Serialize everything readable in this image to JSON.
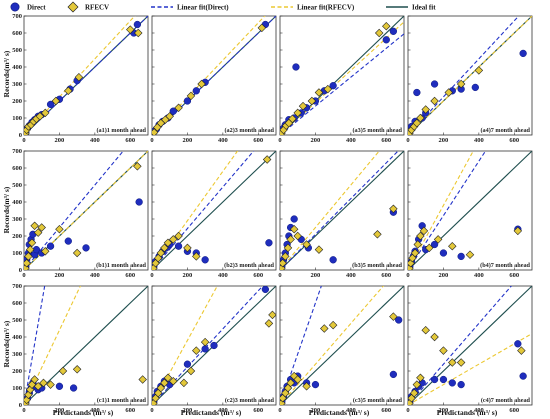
{
  "chart_data": {
    "type": "scatter",
    "grid": false,
    "xlabel": "Predictands (m³/ s)",
    "ylabel": "Records(m³/ s)",
    "xlim": [
      0,
      700
    ],
    "ylim": [
      0,
      700
    ],
    "xticks": [
      0,
      200,
      400,
      600
    ],
    "yticks": [
      0,
      100,
      200,
      300,
      400,
      500,
      600,
      700
    ],
    "colors": {
      "direct": "#1f2dbd",
      "rfecv": "#e3c83a",
      "linear_direct": "#2233c8",
      "linear_rfecv": "#ecc832",
      "ideal": "#1f4f4f"
    },
    "legend": {
      "position": "top",
      "entries": [
        {
          "key": "direct",
          "label": "Direct",
          "marker": "circle"
        },
        {
          "key": "rfecv",
          "label": "RFECV",
          "marker": "diamond"
        },
        {
          "key": "linear_direct",
          "label": "Linear fit(Direct)",
          "marker": "dashed-line"
        },
        {
          "key": "linear_rfecv",
          "label": "Linear fit(RFECV)",
          "marker": "dashed-line"
        },
        {
          "key": "ideal",
          "label": "Ideal fit",
          "marker": "solid-line"
        }
      ]
    },
    "panels": [
      {
        "label": "(a1)1 month ahead",
        "fit_direct": [
          0,
          1.0
        ],
        "fit_rfecv": [
          0,
          1.12
        ],
        "direct": [
          [
            10,
            15
          ],
          [
            20,
            40
          ],
          [
            30,
            55
          ],
          [
            45,
            75
          ],
          [
            60,
            90
          ],
          [
            80,
            110
          ],
          [
            100,
            120
          ],
          [
            150,
            180
          ],
          [
            200,
            210
          ],
          [
            260,
            270
          ],
          [
            300,
            320
          ],
          [
            620,
            600
          ],
          [
            640,
            650
          ]
        ],
        "rfecv": [
          [
            8,
            10
          ],
          [
            15,
            30
          ],
          [
            25,
            50
          ],
          [
            40,
            60
          ],
          [
            55,
            80
          ],
          [
            70,
            95
          ],
          [
            90,
            110
          ],
          [
            120,
            130
          ],
          [
            180,
            200
          ],
          [
            250,
            260
          ],
          [
            310,
            340
          ],
          [
            600,
            620
          ],
          [
            645,
            600
          ]
        ]
      },
      {
        "label": "(a2)3 month ahead",
        "fit_direct": [
          0,
          1.0
        ],
        "fit_rfecv": [
          0,
          1.1
        ],
        "direct": [
          [
            10,
            20
          ],
          [
            25,
            35
          ],
          [
            40,
            60
          ],
          [
            60,
            80
          ],
          [
            90,
            100
          ],
          [
            120,
            140
          ],
          [
            200,
            200
          ],
          [
            250,
            260
          ],
          [
            300,
            310
          ],
          [
            640,
            650
          ]
        ],
        "rfecv": [
          [
            12,
            15
          ],
          [
            30,
            45
          ],
          [
            50,
            70
          ],
          [
            75,
            90
          ],
          [
            100,
            110
          ],
          [
            150,
            160
          ],
          [
            220,
            230
          ],
          [
            280,
            300
          ],
          [
            620,
            630
          ]
        ]
      },
      {
        "label": "(a3)5 month ahead",
        "fit_direct": [
          0,
          0.85
        ],
        "fit_rfecv": [
          0,
          0.95
        ],
        "direct": [
          [
            10,
            20
          ],
          [
            20,
            40
          ],
          [
            30,
            60
          ],
          [
            50,
            90
          ],
          [
            80,
            100
          ],
          [
            90,
            400
          ],
          [
            120,
            130
          ],
          [
            150,
            160
          ],
          [
            200,
            200
          ],
          [
            250,
            260
          ],
          [
            300,
            290
          ],
          [
            600,
            560
          ],
          [
            640,
            610
          ]
        ],
        "rfecv": [
          [
            8,
            10
          ],
          [
            20,
            30
          ],
          [
            35,
            55
          ],
          [
            50,
            70
          ],
          [
            70,
            95
          ],
          [
            100,
            130
          ],
          [
            130,
            170
          ],
          [
            180,
            200
          ],
          [
            220,
            250
          ],
          [
            270,
            270
          ],
          [
            560,
            600
          ],
          [
            600,
            640
          ]
        ]
      },
      {
        "label": "(a4)7 month ahead",
        "fit_direct": [
          0,
          1.12
        ],
        "fit_rfecv": [
          0,
          1.0
        ],
        "direct": [
          [
            10,
            20
          ],
          [
            20,
            50
          ],
          [
            40,
            80
          ],
          [
            50,
            250
          ],
          [
            80,
            100
          ],
          [
            100,
            130
          ],
          [
            150,
            300
          ],
          [
            250,
            260
          ],
          [
            300,
            270
          ],
          [
            380,
            280
          ],
          [
            650,
            480
          ]
        ],
        "rfecv": [
          [
            8,
            10
          ],
          [
            20,
            30
          ],
          [
            35,
            50
          ],
          [
            50,
            70
          ],
          [
            70,
            100
          ],
          [
            100,
            150
          ],
          [
            150,
            200
          ],
          [
            230,
            250
          ],
          [
            300,
            300
          ],
          [
            400,
            380
          ]
        ]
      },
      {
        "label": "(b1)1 month ahead",
        "fit_direct": [
          0,
          1.25
        ],
        "fit_rfecv": [
          0,
          1.0
        ],
        "direct": [
          [
            10,
            20
          ],
          [
            15,
            60
          ],
          [
            25,
            100
          ],
          [
            30,
            150
          ],
          [
            40,
            180
          ],
          [
            50,
            210
          ],
          [
            60,
            90
          ],
          [
            70,
            120
          ],
          [
            100,
            100
          ],
          [
            150,
            140
          ],
          [
            250,
            170
          ],
          [
            350,
            130
          ],
          [
            650,
            400
          ]
        ],
        "rfecv": [
          [
            8,
            10
          ],
          [
            15,
            40
          ],
          [
            25,
            80
          ],
          [
            35,
            120
          ],
          [
            45,
            160
          ],
          [
            60,
            260
          ],
          [
            80,
            220
          ],
          [
            100,
            250
          ],
          [
            120,
            110
          ],
          [
            200,
            240
          ],
          [
            300,
            100
          ],
          [
            640,
            610
          ]
        ]
      },
      {
        "label": "(b2)3 month ahead",
        "fit_direct": [
          0,
          1.22
        ],
        "fit_rfecv": [
          0,
          1.45
        ],
        "direct": [
          [
            10,
            20
          ],
          [
            20,
            50
          ],
          [
            40,
            80
          ],
          [
            60,
            110
          ],
          [
            80,
            130
          ],
          [
            100,
            150
          ],
          [
            150,
            140
          ],
          [
            200,
            110
          ],
          [
            250,
            100
          ],
          [
            300,
            60
          ],
          [
            660,
            160
          ]
        ],
        "rfecv": [
          [
            8,
            10
          ],
          [
            20,
            40
          ],
          [
            35,
            70
          ],
          [
            50,
            100
          ],
          [
            70,
            130
          ],
          [
            90,
            160
          ],
          [
            120,
            180
          ],
          [
            150,
            200
          ],
          [
            200,
            130
          ],
          [
            250,
            80
          ],
          [
            650,
            650
          ]
        ]
      },
      {
        "label": "(b3)5 month ahead",
        "fit_direct": [
          0,
          1.05
        ],
        "fit_rfecv": [
          0,
          1.25
        ],
        "direct": [
          [
            10,
            20
          ],
          [
            20,
            60
          ],
          [
            30,
            100
          ],
          [
            40,
            150
          ],
          [
            50,
            200
          ],
          [
            60,
            250
          ],
          [
            80,
            300
          ],
          [
            120,
            180
          ],
          [
            160,
            130
          ],
          [
            300,
            60
          ],
          [
            640,
            340
          ]
        ],
        "rfecv": [
          [
            8,
            10
          ],
          [
            15,
            40
          ],
          [
            30,
            80
          ],
          [
            45,
            130
          ],
          [
            60,
            180
          ],
          [
            80,
            240
          ],
          [
            100,
            200
          ],
          [
            150,
            150
          ],
          [
            220,
            120
          ],
          [
            550,
            210
          ],
          [
            640,
            360
          ]
        ]
      },
      {
        "label": "(b4)7 month ahead",
        "fit_direct": [
          0,
          1.6
        ],
        "fit_rfecv": [
          0,
          1.9
        ],
        "direct": [
          [
            10,
            20
          ],
          [
            20,
            50
          ],
          [
            30,
            80
          ],
          [
            40,
            110
          ],
          [
            60,
            180
          ],
          [
            80,
            260
          ],
          [
            100,
            120
          ],
          [
            150,
            150
          ],
          [
            200,
            100
          ],
          [
            300,
            80
          ],
          [
            620,
            240
          ]
        ],
        "rfecv": [
          [
            8,
            10
          ],
          [
            15,
            40
          ],
          [
            25,
            70
          ],
          [
            40,
            100
          ],
          [
            55,
            150
          ],
          [
            70,
            200
          ],
          [
            90,
            230
          ],
          [
            120,
            130
          ],
          [
            170,
            180
          ],
          [
            250,
            140
          ],
          [
            350,
            90
          ],
          [
            620,
            230
          ]
        ]
      },
      {
        "label": "(c1)1 month ahead",
        "fit_direct": [
          0,
          6.0
        ],
        "fit_rfecv": [
          0,
          2.2
        ],
        "direct": [
          [
            10,
            20
          ],
          [
            20,
            40
          ],
          [
            30,
            70
          ],
          [
            40,
            100
          ],
          [
            50,
            130
          ],
          [
            60,
            110
          ],
          [
            80,
            90
          ],
          [
            100,
            100
          ],
          [
            200,
            110
          ],
          [
            280,
            100
          ]
        ],
        "rfecv": [
          [
            8,
            10
          ],
          [
            15,
            30
          ],
          [
            25,
            60
          ],
          [
            35,
            90
          ],
          [
            45,
            120
          ],
          [
            60,
            150
          ],
          [
            80,
            110
          ],
          [
            110,
            130
          ],
          [
            150,
            120
          ],
          [
            220,
            200
          ],
          [
            300,
            210
          ],
          [
            670,
            150
          ]
        ]
      },
      {
        "label": "(c2)3 month ahead",
        "fit_direct": [
          0,
          1.12
        ],
        "fit_rfecv": [
          0,
          1.9
        ],
        "direct": [
          [
            10,
            20
          ],
          [
            20,
            50
          ],
          [
            30,
            80
          ],
          [
            50,
            110
          ],
          [
            70,
            140
          ],
          [
            100,
            120
          ],
          [
            200,
            240
          ],
          [
            300,
            330
          ],
          [
            350,
            350
          ],
          [
            640,
            680
          ]
        ],
        "rfecv": [
          [
            8,
            10
          ],
          [
            20,
            40
          ],
          [
            35,
            70
          ],
          [
            50,
            100
          ],
          [
            70,
            130
          ],
          [
            90,
            160
          ],
          [
            120,
            140
          ],
          [
            180,
            130
          ],
          [
            220,
            200
          ],
          [
            250,
            320
          ],
          [
            300,
            370
          ],
          [
            660,
            480
          ],
          [
            680,
            530
          ]
        ]
      },
      {
        "label": "(c3)5 month ahead",
        "fit_direct": [
          0,
          3.0
        ],
        "fit_rfecv": [
          0,
          1.2
        ],
        "direct": [
          [
            10,
            20
          ],
          [
            20,
            50
          ],
          [
            30,
            80
          ],
          [
            40,
            110
          ],
          [
            60,
            150
          ],
          [
            80,
            130
          ],
          [
            100,
            170
          ],
          [
            150,
            130
          ],
          [
            200,
            120
          ],
          [
            640,
            180
          ],
          [
            670,
            500
          ]
        ],
        "rfecv": [
          [
            8,
            10
          ],
          [
            15,
            40
          ],
          [
            30,
            70
          ],
          [
            45,
            100
          ],
          [
            60,
            130
          ],
          [
            80,
            170
          ],
          [
            100,
            150
          ],
          [
            150,
            110
          ],
          [
            250,
            450
          ],
          [
            300,
            470
          ],
          [
            640,
            520
          ]
        ]
      },
      {
        "label": "(c4)7 month ahead",
        "fit_direct": [
          0,
          1.2
        ],
        "fit_rfecv": [
          0,
          0.6
        ],
        "direct": [
          [
            10,
            20
          ],
          [
            20,
            50
          ],
          [
            40,
            80
          ],
          [
            60,
            110
          ],
          [
            80,
            130
          ],
          [
            150,
            150
          ],
          [
            200,
            150
          ],
          [
            250,
            130
          ],
          [
            300,
            120
          ],
          [
            620,
            360
          ],
          [
            650,
            170
          ]
        ],
        "rfecv": [
          [
            8,
            10
          ],
          [
            20,
            40
          ],
          [
            35,
            70
          ],
          [
            50,
            120
          ],
          [
            70,
            160
          ],
          [
            100,
            440
          ],
          [
            150,
            400
          ],
          [
            200,
            320
          ],
          [
            250,
            250
          ],
          [
            300,
            250
          ],
          [
            640,
            320
          ]
        ]
      }
    ]
  }
}
